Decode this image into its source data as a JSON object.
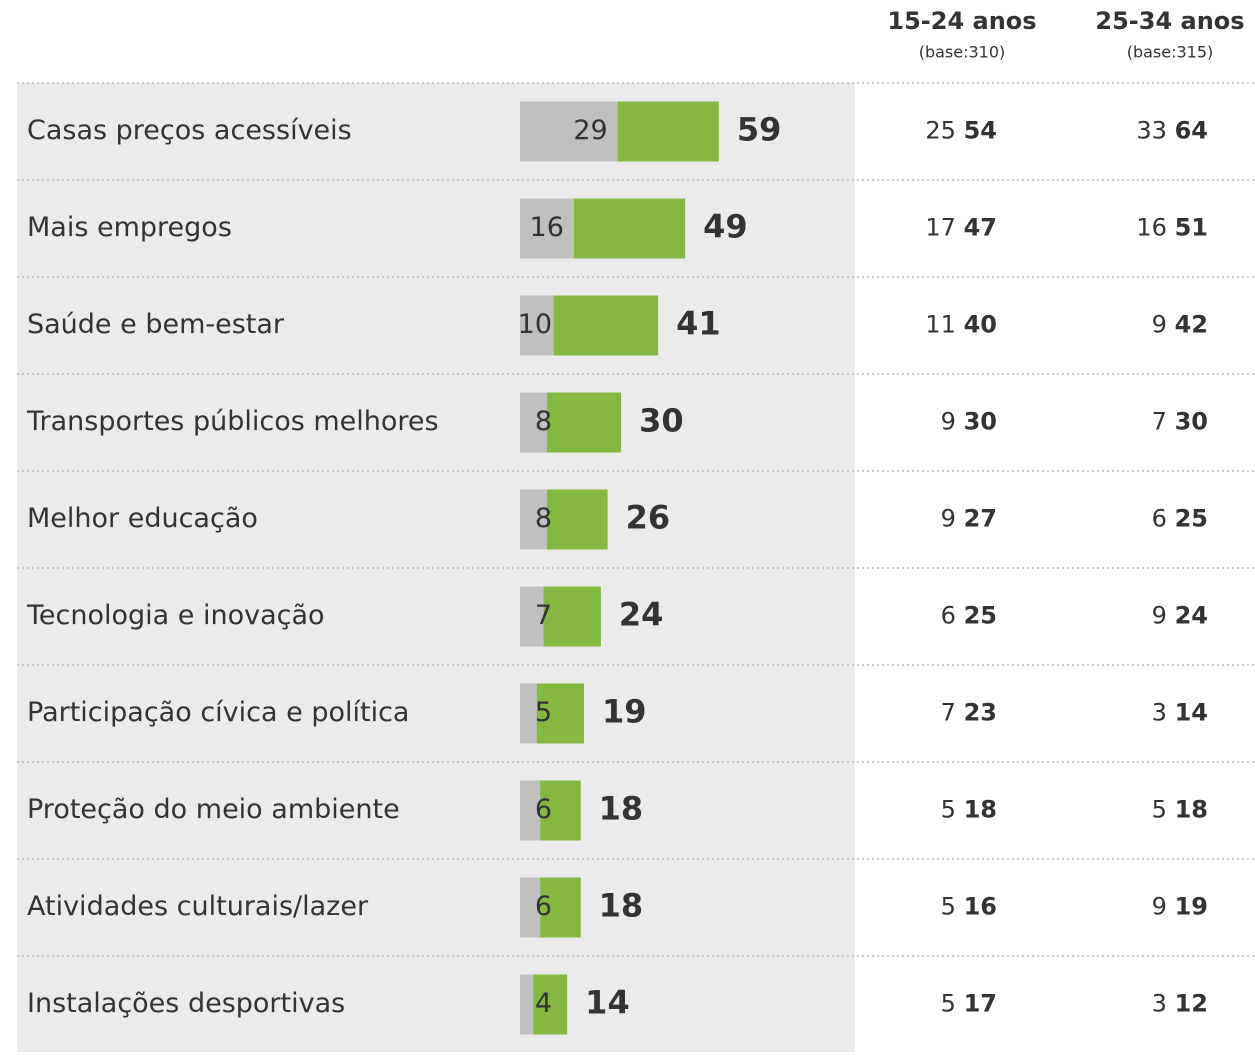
{
  "chart_data": {
    "type": "bar",
    "categories": [
      "Casas preços acessíveis",
      "Mais empregos",
      "Saúde e bem-estar",
      "Transportes públicos melhores",
      "Melhor educação",
      "Tecnologia e inovação",
      "Participação cívica e política",
      "Proteção do meio ambiente",
      "Atividades culturais/lazer",
      "Instalações desportivas"
    ],
    "first_values": [
      29,
      16,
      10,
      8,
      8,
      7,
      5,
      6,
      6,
      4
    ],
    "values": [
      59,
      49,
      41,
      30,
      26,
      24,
      19,
      18,
      18,
      14
    ],
    "first_color": "#c0c0c0",
    "color": "#84b840",
    "columns": [
      {
        "title": "15-24 anos",
        "base": "(base:310)",
        "first_values": [
          25,
          17,
          11,
          9,
          9,
          6,
          7,
          5,
          5,
          5
        ],
        "values": [
          54,
          47,
          40,
          30,
          27,
          25,
          23,
          18,
          16,
          17
        ]
      },
      {
        "title": "25-34 anos",
        "base": "(base:315)",
        "first_values": [
          33,
          16,
          9,
          7,
          6,
          9,
          3,
          5,
          9,
          3
        ],
        "values": [
          64,
          51,
          42,
          30,
          25,
          24,
          14,
          18,
          19,
          12
        ]
      }
    ]
  }
}
